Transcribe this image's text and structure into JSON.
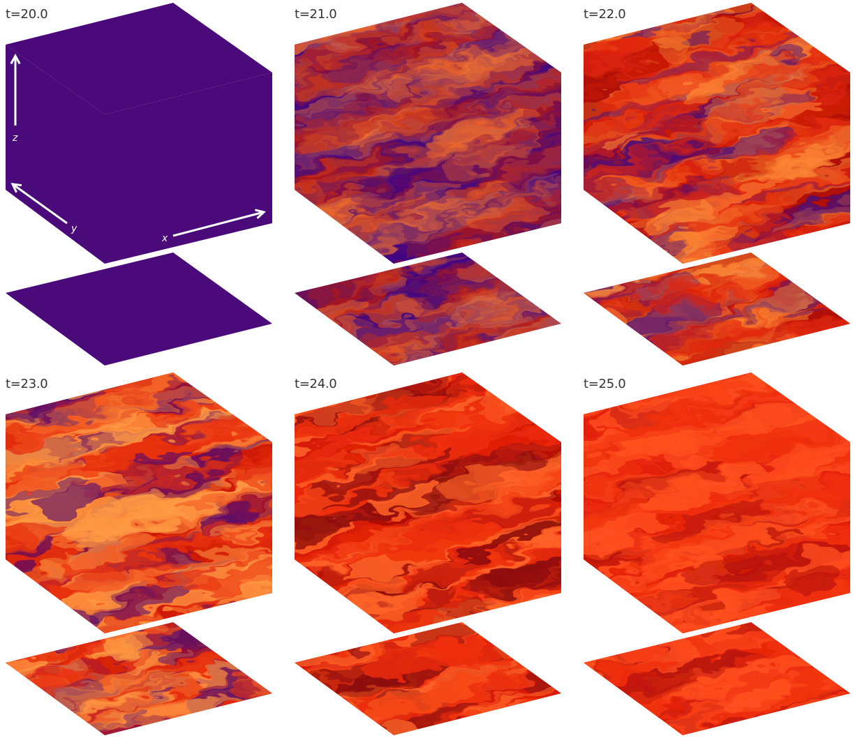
{
  "panels": [
    {
      "time_label": "t=20.0",
      "state": "uniform",
      "colors": {
        "base": "#4a0a7a",
        "accent": "#4a0a7a",
        "hot": "#4a0a7a",
        "cold": "#4a0a7a"
      },
      "mix": 0.0
    },
    {
      "time_label": "t=21.0",
      "state": "onset-of-turbulence",
      "colors": {
        "base": "#4a0a7a",
        "accent": "#c81e08",
        "hot": "#ff7a2a",
        "cold": "#3e0a88"
      },
      "mix": 0.45
    },
    {
      "time_label": "t=22.0",
      "state": "developing-turbulence",
      "colors": {
        "base": "#b01008",
        "accent": "#e2260c",
        "hot": "#ff8a36",
        "cold": "#420a80"
      },
      "mix": 0.65
    },
    {
      "time_label": "t=23.0",
      "state": "turbulent",
      "colors": {
        "base": "#cf1a08",
        "accent": "#ea3410",
        "hot": "#ff9a44",
        "cold": "#5a0c6a"
      },
      "mix": 0.85
    },
    {
      "time_label": "t=24.0",
      "state": "saturated",
      "colors": {
        "base": "#d81a08",
        "accent": "#ee2e0c",
        "hot": "#ff6428",
        "cold": "#8c0c0c"
      },
      "mix": 0.95
    },
    {
      "time_label": "t=25.0",
      "state": "saturated",
      "colors": {
        "base": "#e3200a",
        "accent": "#f0300e",
        "hot": "#ff5020",
        "cold": "#b8140a"
      },
      "mix": 1.0
    }
  ],
  "axes": {
    "z_label": "z",
    "y_label": "y",
    "x_label": "x"
  }
}
